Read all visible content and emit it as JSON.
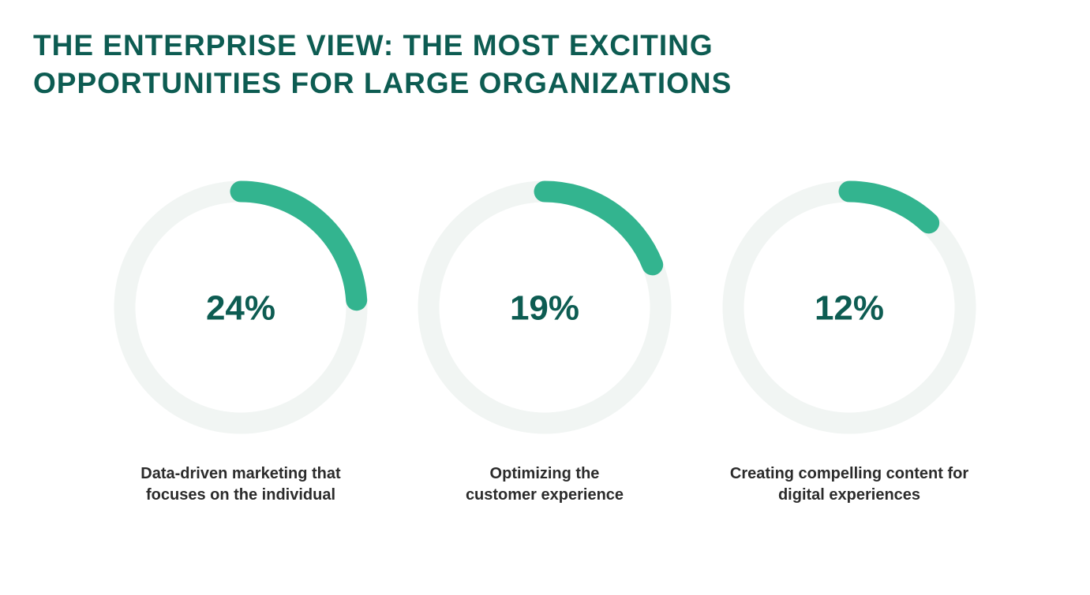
{
  "chart_data": {
    "type": "donut",
    "title": "THE ENTERPRISE VIEW: THE MOST EXCITING OPPORTUNITIES FOR LARGE ORGANIZATIONS",
    "categories": [
      "Data-driven marketing that focuses on the individual",
      "Optimizing the customer experience",
      "Creating compelling content for digital experiences"
    ],
    "values": [
      24,
      19,
      12
    ],
    "value_labels": [
      "24%",
      "19%",
      "12%"
    ],
    "ylim": [
      0,
      100
    ],
    "color": "#33b48f",
    "track_color": "#f1f5f3"
  }
}
